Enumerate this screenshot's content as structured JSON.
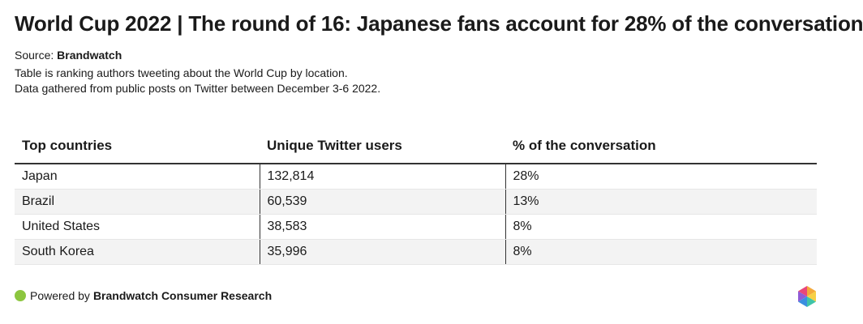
{
  "title": "World Cup 2022 | The round of 16: Japanese fans account for 28% of the conversation",
  "source": {
    "label": "Source:",
    "name": "Brandwatch"
  },
  "description": [
    "Table is ranking authors tweeting about the World Cup by location.",
    "Data gathered from public posts on Twitter between December 3-6 2022."
  ],
  "chart_data": {
    "type": "table",
    "columns": [
      "Top countries",
      "Unique Twitter users",
      "% of the conversation"
    ],
    "rows": [
      [
        "Japan",
        "132,814",
        "28%"
      ],
      [
        "Brazil",
        "60,539",
        "13%"
      ],
      [
        "United States",
        "38,583",
        "8%"
      ],
      [
        "South Korea",
        "35,996",
        "8%"
      ]
    ]
  },
  "footer": {
    "prefix": "Powered by",
    "brand": "Brandwatch Consumer Research",
    "dot_color": "#8cc63f"
  },
  "logo_icon": "brandwatch-hexagon-icon"
}
